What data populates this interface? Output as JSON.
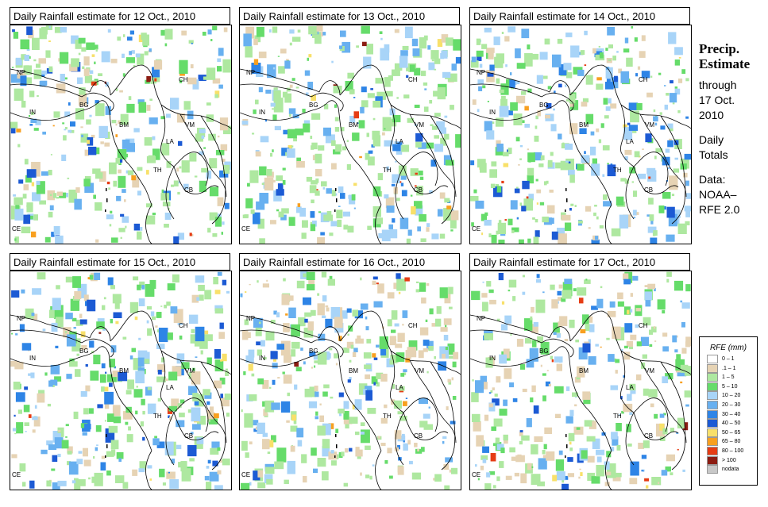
{
  "panels": [
    {
      "title": "Daily Rainfall estimate for  12 Oct., 2010"
    },
    {
      "title": "Daily Rainfall estimate for  13 Oct., 2010"
    },
    {
      "title": "Daily Rainfall estimate for  14 Oct., 2010"
    },
    {
      "title": "Daily Rainfall estimate for  15 Oct., 2010"
    },
    {
      "title": "Daily Rainfall estimate for  16 Oct., 2010"
    },
    {
      "title": "Daily Rainfall estimate for  17 Oct., 2010"
    }
  ],
  "country_labels": {
    "np": "NP",
    "ch": "CH",
    "in": "IN",
    "bg": "BG",
    "bm": "BM",
    "vm": "VM",
    "la": "LA",
    "th": "TH",
    "cb": "CB",
    "ce": "CE"
  },
  "side": {
    "title_line1": "Precip.",
    "title_line2": "Estimate",
    "through": "through",
    "date_line1": "17 Oct.",
    "date_line2": "2010",
    "daily1": "Daily",
    "daily2": "Totals",
    "data1": "Data:",
    "data2": "NOAA–",
    "data3": "RFE 2.0"
  },
  "legend": {
    "title": "RFE (mm)",
    "items": [
      {
        "label": "0 – 1",
        "color": "#ffffff"
      },
      {
        "label": ".1 – 1",
        "color": "#e6d3b4"
      },
      {
        "label": "1 – 5",
        "color": "#aee8a0"
      },
      {
        "label": "5 – 10",
        "color": "#66dc6a"
      },
      {
        "label": "10 – 20",
        "color": "#a8d4f8"
      },
      {
        "label": "20 – 30",
        "color": "#68b0f0"
      },
      {
        "label": "30 – 40",
        "color": "#2e84e6"
      },
      {
        "label": "40 – 50",
        "color": "#1c5ad4"
      },
      {
        "label": "50 – 65",
        "color": "#f8e06a"
      },
      {
        "label": "65 – 80",
        "color": "#f8a020"
      },
      {
        "label": "80 – 100",
        "color": "#e63c14"
      },
      {
        "label": "> 100",
        "color": "#8c1c12"
      },
      {
        "label": "nodata",
        "color": "#c8c8c8"
      }
    ]
  }
}
